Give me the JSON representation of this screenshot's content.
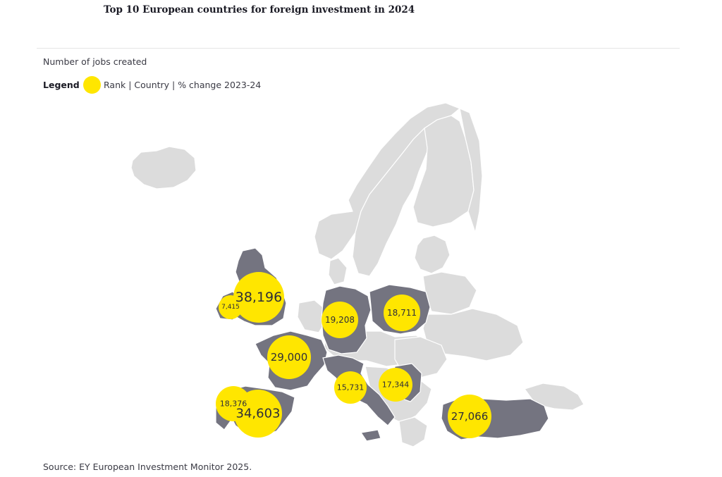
{
  "title": "Top 10 European countries for foreign investment in 2024",
  "subtitle": "Number of jobs created",
  "legend": {
    "label": "Legend",
    "description": "Rank | Country | % change 2023-24",
    "color": "#ffe600"
  },
  "source": "Source: EY European Investment Monitor 2025.",
  "colors": {
    "highlight": "#747480",
    "land": "#dcdcdc",
    "bubble": "#ffe600"
  },
  "bubbles": [
    {
      "value": "38,196"
    },
    {
      "value": "7,415"
    },
    {
      "value": "19,208"
    },
    {
      "value": "18,711"
    },
    {
      "value": "29,000"
    },
    {
      "value": "15,731"
    },
    {
      "value": "17,344"
    },
    {
      "value": "18,376"
    },
    {
      "value": "34,603"
    },
    {
      "value": "27,066"
    }
  ]
}
